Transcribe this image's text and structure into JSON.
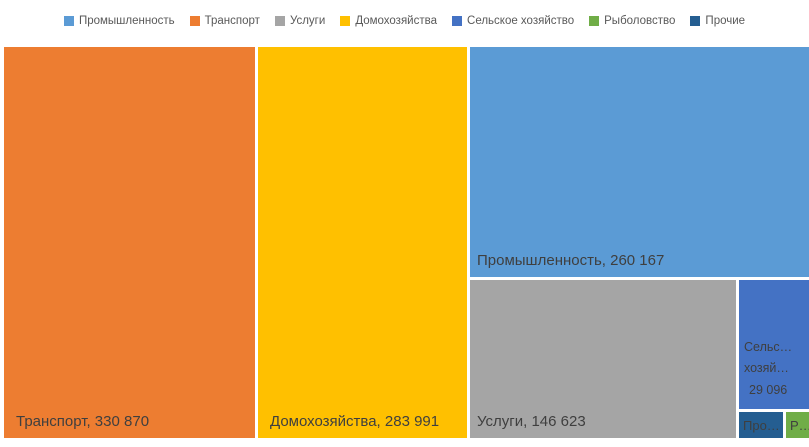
{
  "chart_data": {
    "type": "treemap",
    "title": "",
    "legend_position": "top",
    "series": [
      {
        "name": "Промышленность",
        "value": 260167,
        "color": "#5B9BD5",
        "label": "Промышленность, 260 167"
      },
      {
        "name": "Транспорт",
        "value": 330870,
        "color": "#ED7D31",
        "label": "Транспорт, 330 870"
      },
      {
        "name": "Услуги",
        "value": 146623,
        "color": "#A5A5A5",
        "label": "Услуги, 146 623"
      },
      {
        "name": "Домохозяйства",
        "value": 283991,
        "color": "#FFC000",
        "label": "Домохозяйства, 283 991"
      },
      {
        "name": "Сельское хозяйство",
        "value": 29096,
        "color": "#4472C4",
        "label_lines": [
          "Сельс…",
          "хозяй…",
          "29 096"
        ]
      },
      {
        "name": "Рыболовство",
        "color": "#70AD47",
        "label": "Р…"
      },
      {
        "name": "Прочие",
        "color": "#255E91",
        "label": "Про…"
      }
    ]
  }
}
